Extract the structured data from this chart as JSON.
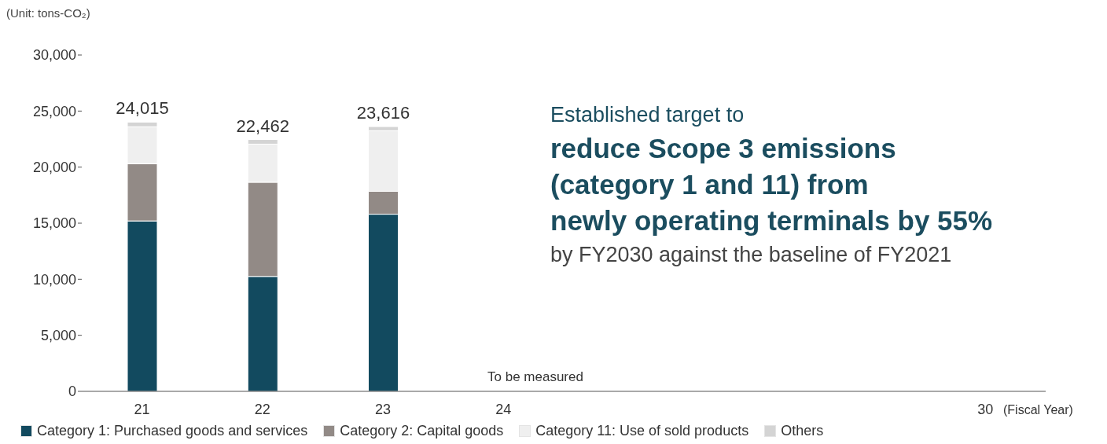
{
  "chart_data": {
    "type": "bar",
    "stacked": true,
    "ylabel": "(Unit: tons-CO₂)",
    "xlabel": "(Fiscal Year)",
    "categories": [
      "21",
      "22",
      "23",
      "24",
      null,
      null,
      null,
      "30"
    ],
    "series": [
      {
        "name": "Category 1: Purchased goods and services",
        "color": "#124a5f",
        "values": [
          15200,
          10250,
          15800,
          null,
          null,
          null,
          null,
          null
        ]
      },
      {
        "name": "Category 2: Capital goods",
        "color": "#928a86",
        "values": [
          5100,
          8400,
          2050,
          null,
          null,
          null,
          null,
          null
        ]
      },
      {
        "name": "Category 11: Use of sold products",
        "color": "#efefef",
        "values": [
          3300,
          3400,
          5400,
          null,
          null,
          null,
          null,
          null
        ]
      },
      {
        "name": "Others",
        "color": "#d4d4d4",
        "values": [
          415,
          412,
          366,
          null,
          null,
          null,
          null,
          null
        ]
      }
    ],
    "totals": [
      "24,015",
      "22,462",
      "23,616",
      null,
      null,
      null,
      null,
      null
    ],
    "ylim": [
      0,
      30000
    ],
    "yticks": [
      {
        "value": 0,
        "label": "0"
      },
      {
        "value": 5000,
        "label": "5,000"
      },
      {
        "value": 10000,
        "label": "10,000"
      },
      {
        "value": 15000,
        "label": "15,000"
      },
      {
        "value": 20000,
        "label": "20,000"
      },
      {
        "value": 25000,
        "label": "25,000"
      },
      {
        "value": 30000,
        "label": "30,000"
      }
    ],
    "grid": false,
    "legend": "bottom left",
    "annotations": [
      "To be measured",
      "Established target to",
      "reduce Scope 3 emissions",
      "(category 1 and 11) from",
      "newly operating terminals by 55%",
      "by FY2030 against the baseline of FY2021"
    ]
  }
}
